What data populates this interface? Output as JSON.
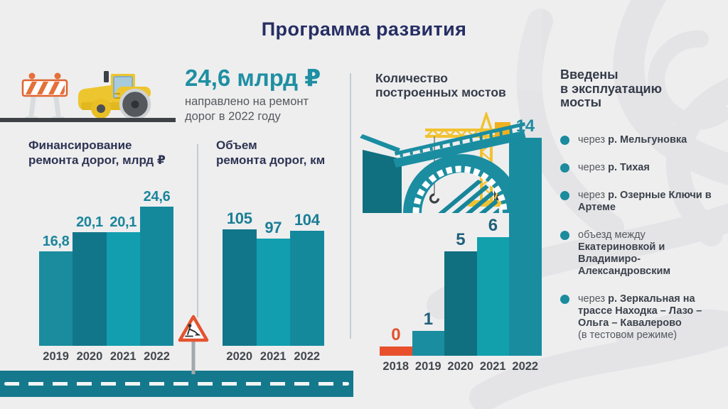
{
  "title": "Программа развития",
  "hero": {
    "amount": "24,6 млрд ₽",
    "caption": [
      "направлено на ремонт",
      "дорог в 2022 году"
    ]
  },
  "bridges_list": {
    "heading": [
      "Введены",
      "в эксплуатацию",
      "мосты"
    ],
    "items": [
      {
        "prefix": "через ",
        "bold": "р. Мельгуновка",
        "suffix": ""
      },
      {
        "prefix": "через ",
        "bold": "р. Тихая",
        "suffix": ""
      },
      {
        "prefix": "через ",
        "bold": "р. Озерные Ключи в Артеме",
        "suffix": ""
      },
      {
        "prefix": "объезд между ",
        "bold": "Екатериновкой и Владимиро-Александровским",
        "suffix": ""
      },
      {
        "prefix": "через ",
        "bold": "р. Зеркальная на трассе Находка – Лазо – Ольга – Кавалерово",
        "suffix": "(в тестовом режиме)"
      }
    ]
  },
  "chart_data": [
    {
      "id": "funding",
      "type": "bar",
      "title": "Финансирование ремонта дорог, млрд ₽",
      "title_lines": [
        "Финансирование",
        "ремонта дорог, млрд ₽"
      ],
      "categories": [
        "2019",
        "2020",
        "2021",
        "2022"
      ],
      "values": [
        16.8,
        20.1,
        20.1,
        24.6
      ],
      "value_labels": [
        "16,8",
        "20,1",
        "20,1",
        "24,6"
      ],
      "colors": [
        "#1a8c9e",
        "#11768a",
        "#129eae",
        "#15899c"
      ],
      "label_colors": [
        "#1b859b",
        "#1b859b",
        "#1b859b",
        "#1b859b"
      ],
      "ylim": [
        0,
        25
      ],
      "grid": false,
      "legend": "none"
    },
    {
      "id": "volume",
      "type": "bar",
      "title": "Объем ремонта дорог, км",
      "title_lines": [
        "Объем",
        "ремонта дорог, км"
      ],
      "categories": [
        "2020",
        "2021",
        "2022"
      ],
      "values": [
        105,
        97,
        104
      ],
      "value_labels": [
        "105",
        "97",
        "104"
      ],
      "colors": [
        "#11768a",
        "#129eae",
        "#15899c"
      ],
      "label_colors": [
        "#1b7e95",
        "#1b7e95",
        "#1b7e95"
      ],
      "ylim": [
        0,
        110
      ],
      "grid": false,
      "legend": "none"
    },
    {
      "id": "bridges",
      "type": "bar",
      "title": "Количество построенных мостов",
      "title_lines": [
        "Количество",
        "построенных мостов"
      ],
      "categories": [
        "2018",
        "2019",
        "2020",
        "2021",
        "2022"
      ],
      "values": [
        0,
        1,
        5,
        6,
        14
      ],
      "value_labels": [
        "0",
        "1",
        "5",
        "6",
        "14"
      ],
      "colors": [
        "#e8502c",
        "#1b8da0",
        "#10707f",
        "#12a0ad",
        "#1a8ca0"
      ],
      "label_colors": [
        "#e2512e",
        "#21607a",
        "#21607a",
        "#21607a",
        "#1f8ba1"
      ],
      "ylim": [
        0,
        14
      ],
      "grid": false,
      "legend": "none"
    }
  ],
  "colors": {
    "accent_teal": "#1b8ca0",
    "accent_orange": "#e2512e",
    "title_navy": "#262e63",
    "road_teal": "#15798d"
  }
}
